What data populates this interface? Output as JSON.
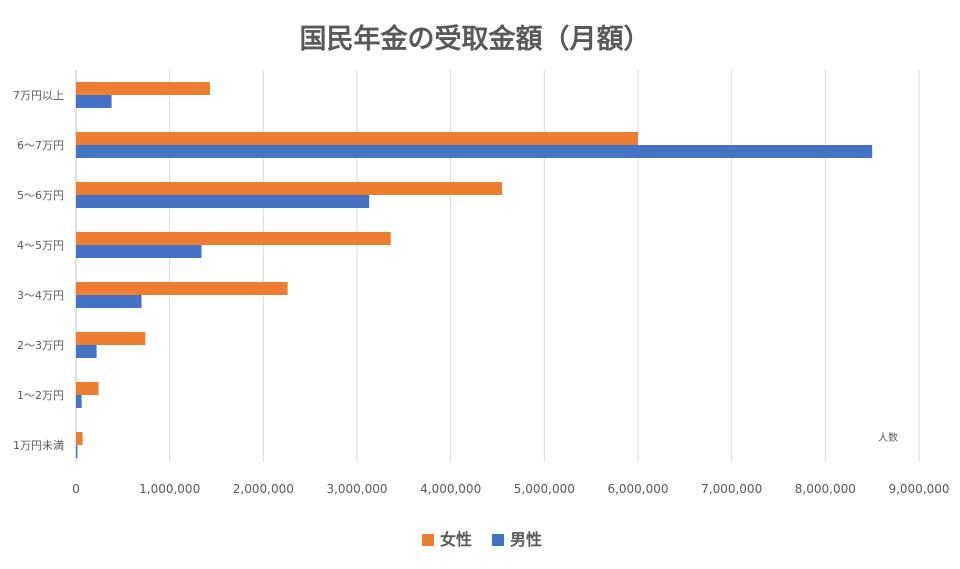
{
  "chart_data": {
    "type": "bar",
    "orientation": "horizontal",
    "title": "国民年金の受取金額（月額）",
    "xlabel": "人数",
    "ylabel": "",
    "categories": [
      "7万円以上",
      "6～7万円",
      "5～6万円",
      "4～5万円",
      "3～4万円",
      "2～3万円",
      "1～2万円",
      "1万円未満"
    ],
    "series": [
      {
        "name": "女性",
        "color": "#ED7D31",
        "values": [
          1430000,
          6000000,
          4550000,
          3360000,
          2260000,
          740000,
          240000,
          70000
        ]
      },
      {
        "name": "男性",
        "color": "#4472C4",
        "values": [
          380000,
          8500000,
          3130000,
          1340000,
          700000,
          220000,
          60000,
          15000
        ]
      }
    ],
    "xlim": [
      0,
      9000000
    ],
    "xticks": [
      0,
      1000000,
      2000000,
      3000000,
      4000000,
      5000000,
      6000000,
      7000000,
      8000000,
      9000000
    ],
    "xtick_labels": [
      "0",
      "1,000,000",
      "2,000,000",
      "3,000,000",
      "4,000,000",
      "5,000,000",
      "6,000,000",
      "7,000,000",
      "8,000,000",
      "9,000,000"
    ],
    "grid": true,
    "legend_position": "bottom"
  }
}
